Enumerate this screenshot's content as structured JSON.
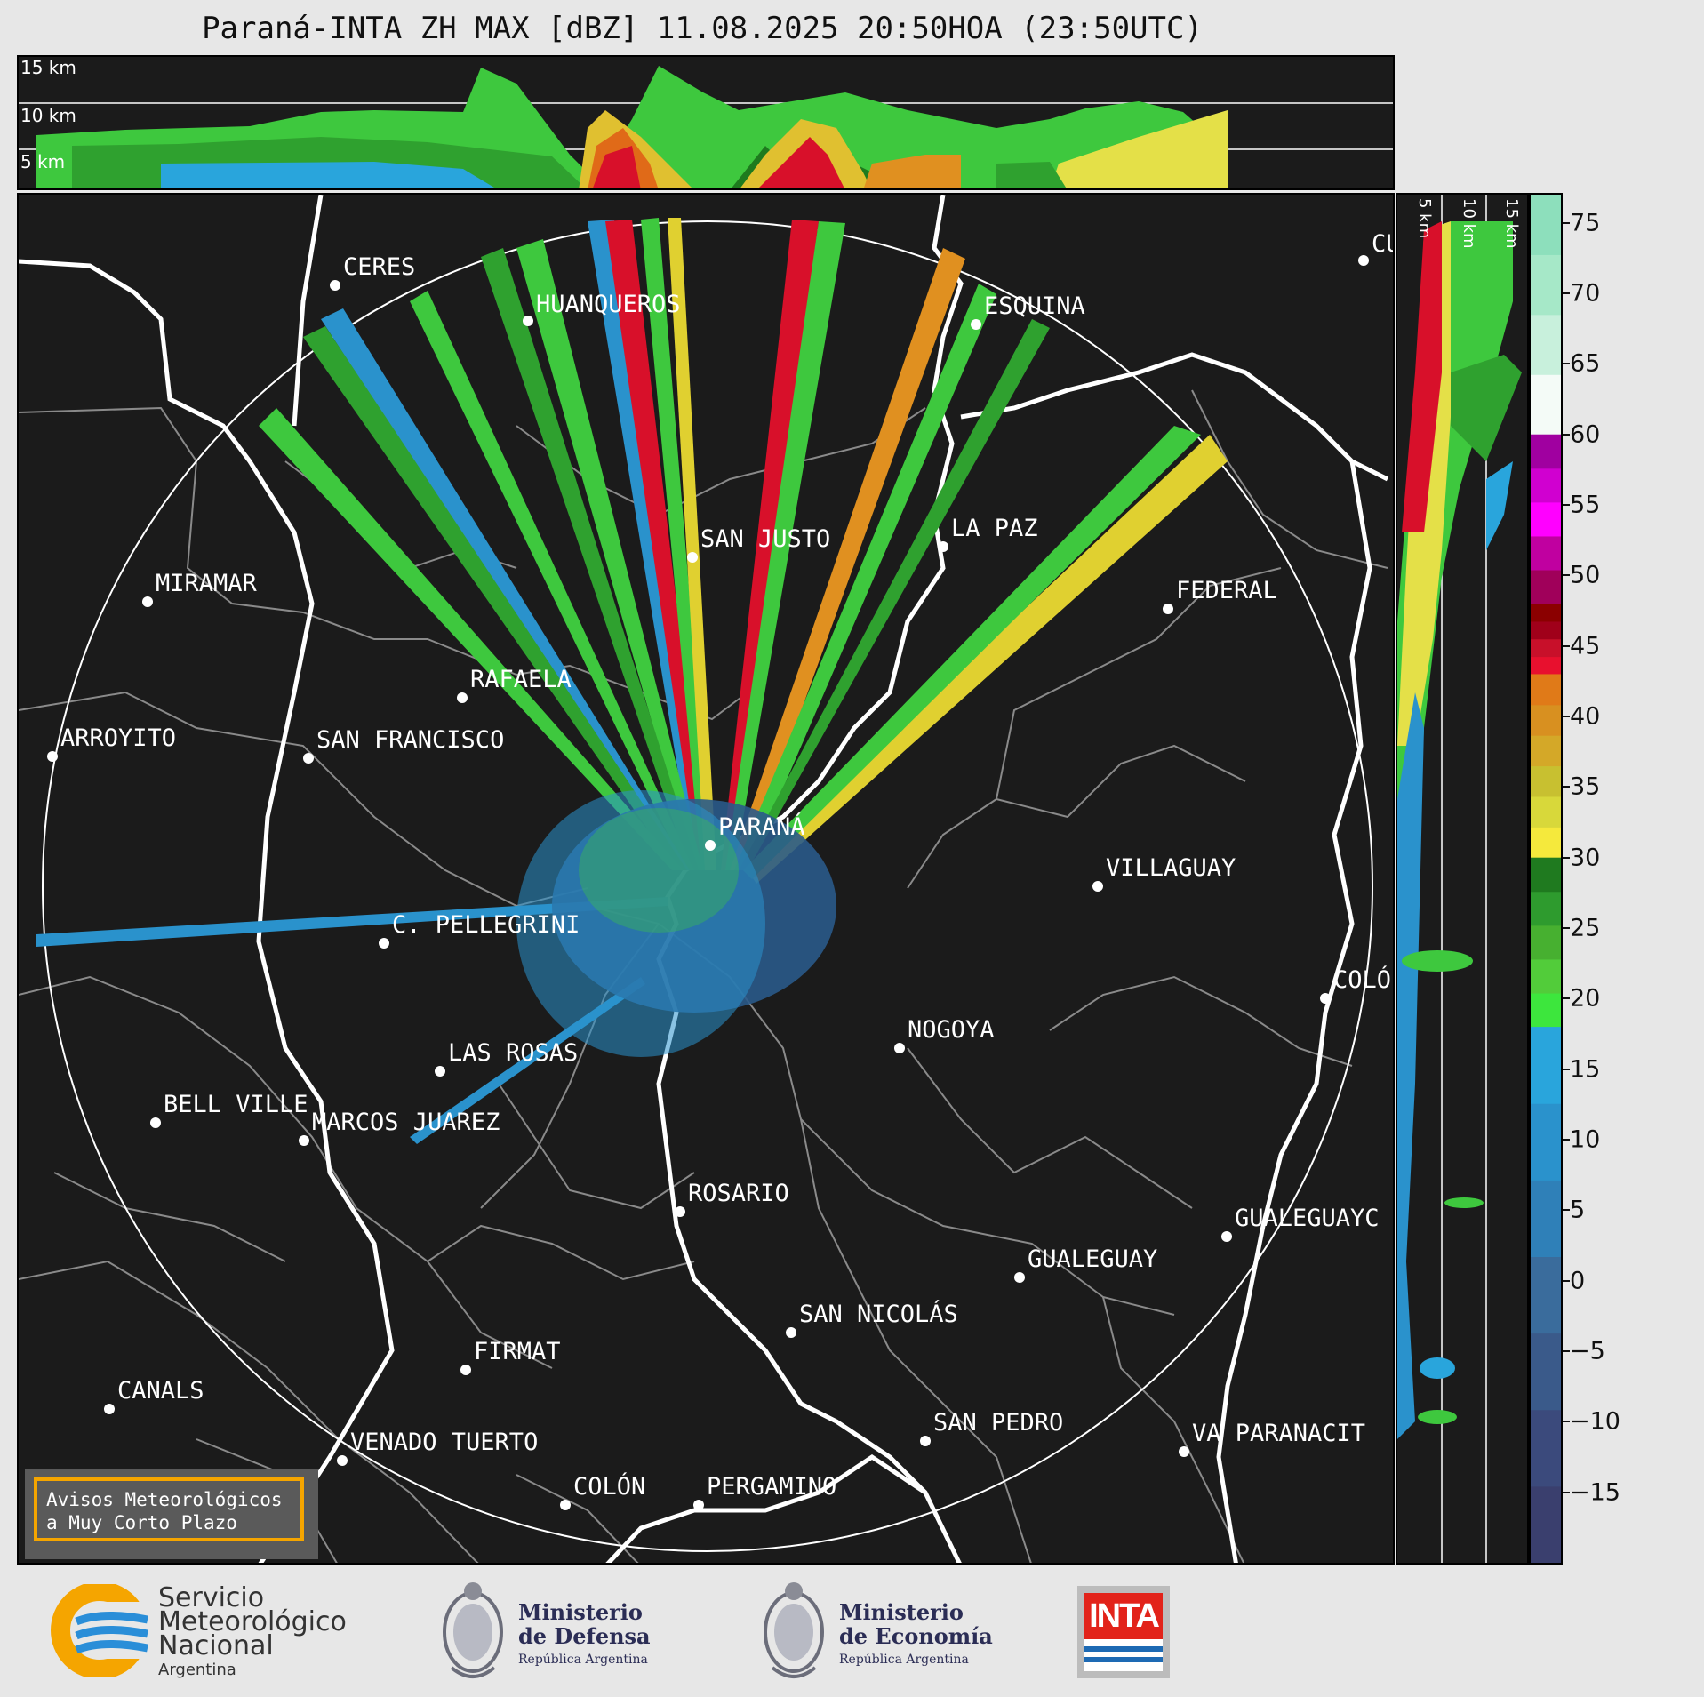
{
  "title": "Paraná-INTA ZH MAX [dBZ] 11.08.2025 20:50HOA (23:50UTC)",
  "top_panel": {
    "height_labels": [
      "15 km",
      "10 km",
      "5 km"
    ]
  },
  "side_panel": {
    "height_labels": [
      "5 km",
      "10 km",
      "15 km"
    ]
  },
  "colorbar": {
    "label": "dBZ",
    "ticks": [
      "75",
      "70",
      "65",
      "60",
      "55",
      "50",
      "45",
      "40",
      "35",
      "30",
      "25",
      "20",
      "15",
      "10",
      "5",
      "0",
      "−5",
      "−10",
      "−15"
    ],
    "range": [
      -20,
      77
    ],
    "segments": [
      {
        "from": 60,
        "to": 77,
        "colors": [
          "#f4fbf7",
          "#c8f0dc",
          "#a6e8c8",
          "#8ddfbc"
        ]
      },
      {
        "from": 48,
        "to": 60,
        "colors": [
          "#a0005a",
          "#c000a0",
          "#ff00ff",
          "#d000d0",
          "#a000a0"
        ]
      },
      {
        "from": 43,
        "to": 48,
        "colors": [
          "#e8102e",
          "#c8102a",
          "#a0001a",
          "#8b0000"
        ]
      },
      {
        "from": 30,
        "to": 43,
        "colors": [
          "#f5e93c",
          "#d8d83a",
          "#c8c030",
          "#d4a828",
          "#d89020",
          "#e07a18"
        ]
      },
      {
        "from": 18,
        "to": 30,
        "colors": [
          "#3de63d",
          "#52cc3a",
          "#47b030",
          "#2e9b2e",
          "#1f7a1f"
        ]
      },
      {
        "from": -20,
        "to": 18,
        "colors": [
          "#3a3f6e",
          "#3b4a7c",
          "#3a5a8a",
          "#3a6c9c",
          "#2f80b8",
          "#2a92cc",
          "#29a5dc"
        ]
      }
    ]
  },
  "cities": [
    {
      "name": "CERES"
    },
    {
      "name": "HUANQUEROS"
    },
    {
      "name": "ESQUINA"
    },
    {
      "name": "CU"
    },
    {
      "name": "SAN JUSTO"
    },
    {
      "name": "LA PAZ"
    },
    {
      "name": "MIRAMAR"
    },
    {
      "name": "FEDERAL"
    },
    {
      "name": "RAFAELA"
    },
    {
      "name": "ARROYITO"
    },
    {
      "name": "SAN FRANCISCO"
    },
    {
      "name": "PARANÁ"
    },
    {
      "name": "VILLAGUAY"
    },
    {
      "name": "C. PELLEGRINI"
    },
    {
      "name": "COLÓ"
    },
    {
      "name": "NOGOYA"
    },
    {
      "name": "LAS ROSAS"
    },
    {
      "name": "BELL VILLE"
    },
    {
      "name": "MARCOS JUAREZ"
    },
    {
      "name": "ROSARIO"
    },
    {
      "name": "GUALEGUAYC"
    },
    {
      "name": "GUALEGUAY"
    },
    {
      "name": "SAN NICOLÁS"
    },
    {
      "name": "FIRMAT"
    },
    {
      "name": "CANALS"
    },
    {
      "name": "SAN PEDRO"
    },
    {
      "name": "VA PARANACIT"
    },
    {
      "name": "VENADO TUERTO"
    },
    {
      "name": "COLÓN"
    },
    {
      "name": "PERGAMINO"
    }
  ],
  "notice": {
    "line1": "Avisos Meteorológicos",
    "line2": "a Muy Corto Plazo"
  },
  "logos": {
    "smn": {
      "line1": "Servicio",
      "line2": "Meteorológico",
      "line3": "Nacional",
      "line4": "Argentina"
    },
    "defensa": {
      "line1": "Ministerio",
      "line2": "de Defensa",
      "line3": "República Argentina"
    },
    "economia": {
      "line1": "Ministerio",
      "line2": "de Economía",
      "line3": "República Argentina"
    },
    "inta": {
      "text": "INTA"
    }
  },
  "colors": {
    "background": "#1b1b1b",
    "ring": "#ffffff",
    "border_lines": "#8a8a8a",
    "notice_border": "#f5a500"
  }
}
